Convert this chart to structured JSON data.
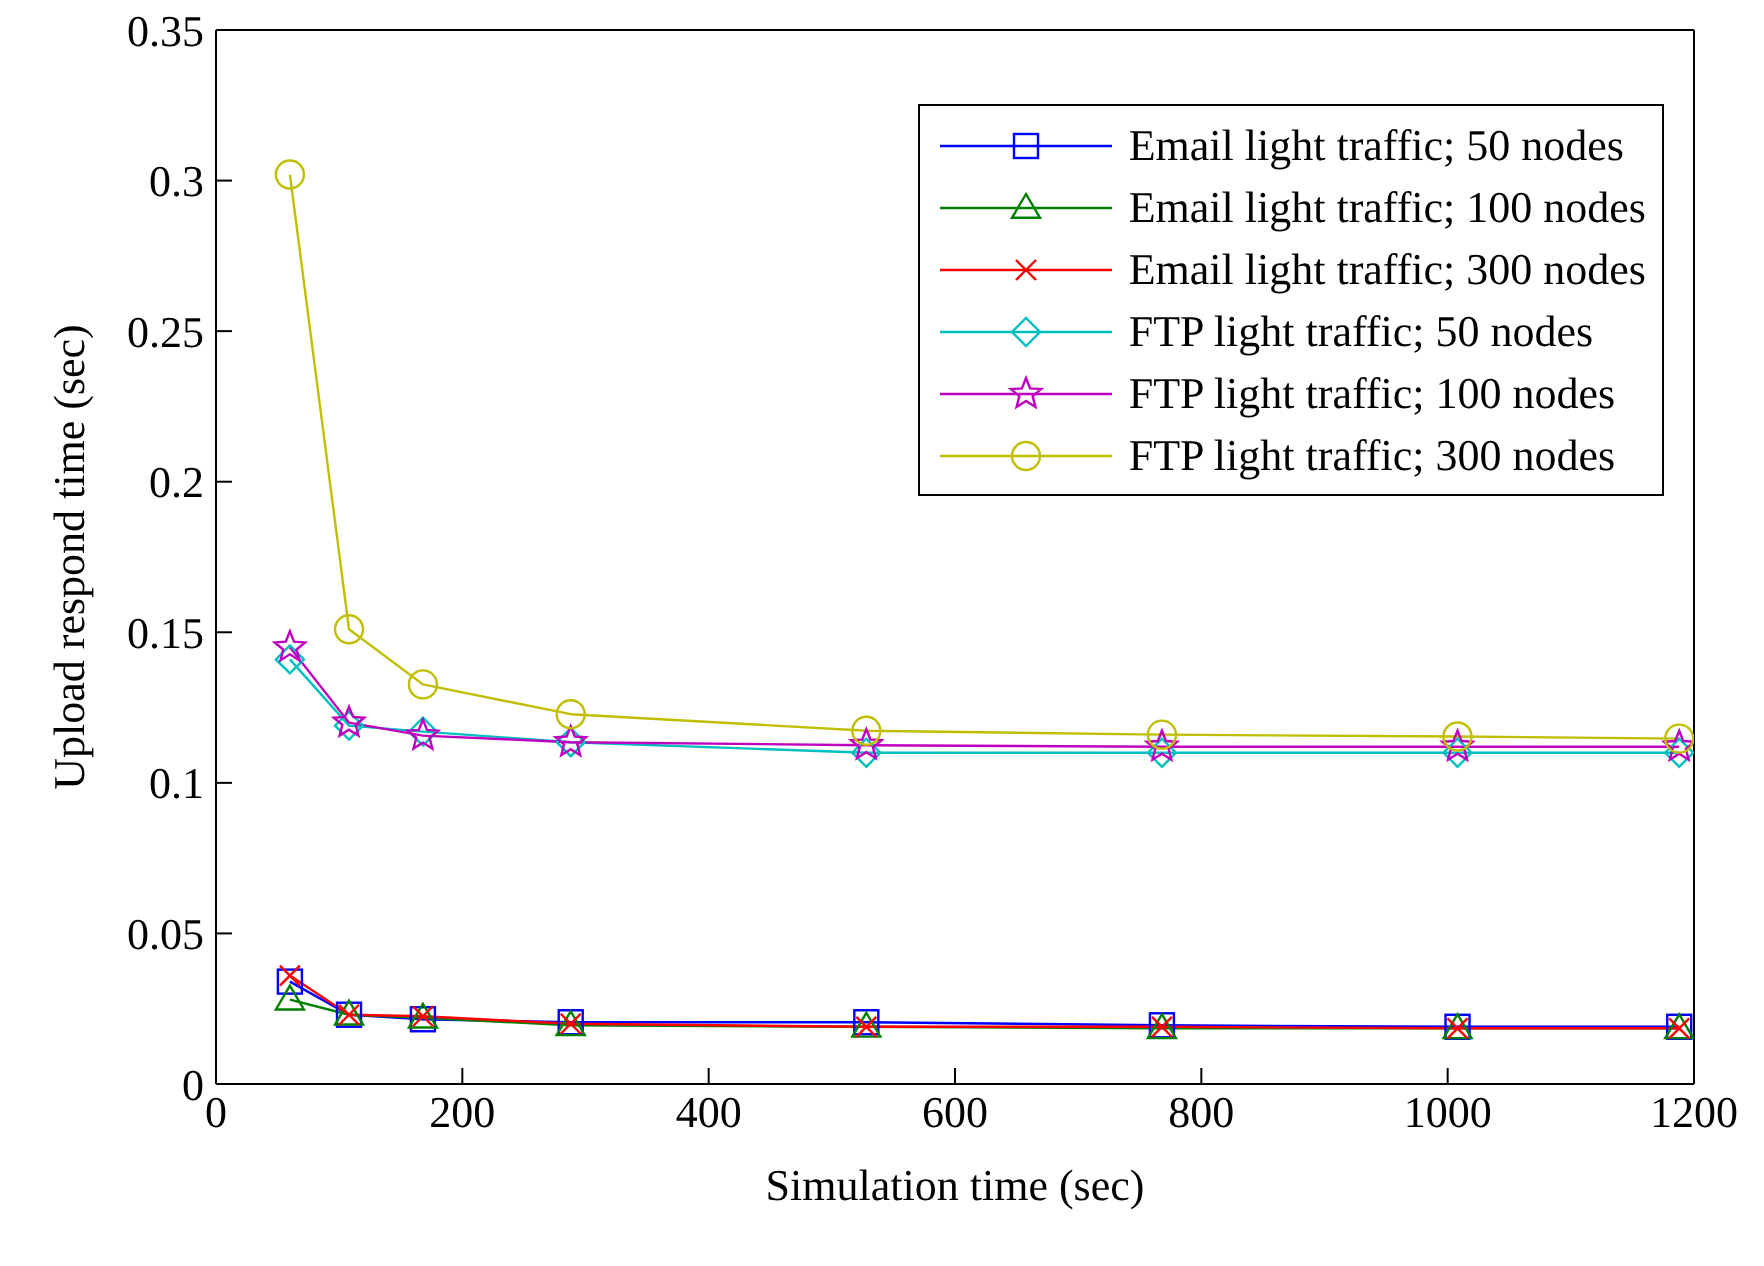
{
  "chart_data": {
    "type": "line",
    "xlabel": "Simulation time (sec)",
    "ylabel": "Upload respond time (sec)",
    "x": [
      60,
      108,
      168,
      288,
      528,
      768,
      1008,
      1188
    ],
    "xlim": [
      0,
      1200
    ],
    "xticks": [
      0,
      200,
      400,
      600,
      800,
      1000,
      1200
    ],
    "ylim": [
      0,
      0.35
    ],
    "yticks": [
      0,
      0.05,
      0.1,
      0.15,
      0.2,
      0.25,
      0.3,
      0.35
    ],
    "grid": false,
    "legend": "top right",
    "series": [
      {
        "name": "Email light traffic; 50 nodes",
        "color": "#0000ff",
        "marker": "square",
        "values": [
          0.034,
          0.023,
          0.0215,
          0.0205,
          0.0205,
          0.0195,
          0.019,
          0.019
        ]
      },
      {
        "name": "Email light traffic; 100 nodes",
        "color": "#008000",
        "marker": "triangle",
        "values": [
          0.028,
          0.023,
          0.022,
          0.0195,
          0.019,
          0.0185,
          0.0185,
          0.0185
        ]
      },
      {
        "name": "Email light traffic; 300 nodes",
        "color": "#ff0000",
        "marker": "cross",
        "values": [
          0.036,
          0.023,
          0.0225,
          0.02,
          0.019,
          0.019,
          0.0185,
          0.0185
        ]
      },
      {
        "name": "FTP light traffic; 50 nodes",
        "color": "#00bfbf",
        "marker": "diamond",
        "values": [
          0.141,
          0.119,
          0.117,
          0.1135,
          0.11,
          0.11,
          0.11,
          0.11
        ]
      },
      {
        "name": "FTP light traffic; 100 nodes",
        "color": "#bf00bf",
        "marker": "star",
        "values": [
          0.145,
          0.12,
          0.1157,
          0.1135,
          0.1125,
          0.112,
          0.112,
          0.112
        ]
      },
      {
        "name": "FTP light traffic; 300 nodes",
        "color": "#bfbf00",
        "marker": "circle",
        "values": [
          0.302,
          0.151,
          0.1327,
          0.1228,
          0.1173,
          0.116,
          0.1154,
          0.1147
        ]
      }
    ]
  }
}
